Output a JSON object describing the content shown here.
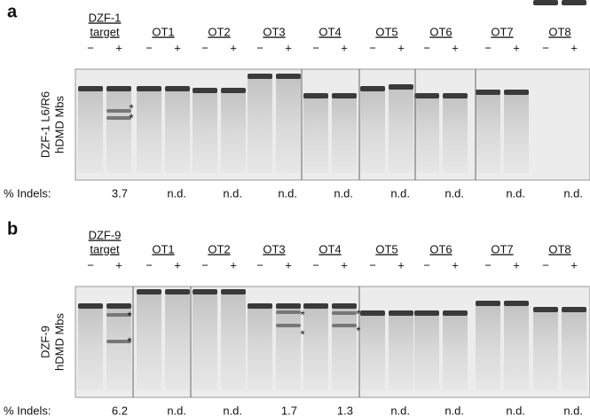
{
  "panels": [
    {
      "label": "a",
      "target": [
        "DZF-1",
        "target"
      ],
      "groups": [
        "OT1",
        "OT2",
        "OT3",
        "OT4",
        "OT5",
        "OT6",
        "OT7",
        "OT8"
      ],
      "minus": "−",
      "plus": "+",
      "y_label": [
        "DZF-1 L6/R6",
        "hDMD Mbs"
      ],
      "indels_label": "% Indels:",
      "indels": [
        "3.7",
        "n.d.",
        "n.d.",
        "n.d.",
        "n.d.",
        "n.d.",
        "n.d.",
        "n.d.",
        "n.d."
      ],
      "asterisk": "*"
    },
    {
      "label": "b",
      "target": [
        "DZF-9",
        "target"
      ],
      "groups": [
        "OT1",
        "OT2",
        "OT3",
        "OT4",
        "OT5",
        "OT6",
        "OT7",
        "OT8"
      ],
      "minus": "−",
      "plus": "+",
      "y_label": [
        "DZF-9",
        "hDMD Mbs"
      ],
      "indels_label": "% Indels:",
      "indels": [
        "6.2",
        "n.d.",
        "n.d.",
        "1.7",
        "1.3",
        "n.d.",
        "n.d.",
        "n.d.",
        "n.d."
      ],
      "asterisk": "*"
    }
  ]
}
